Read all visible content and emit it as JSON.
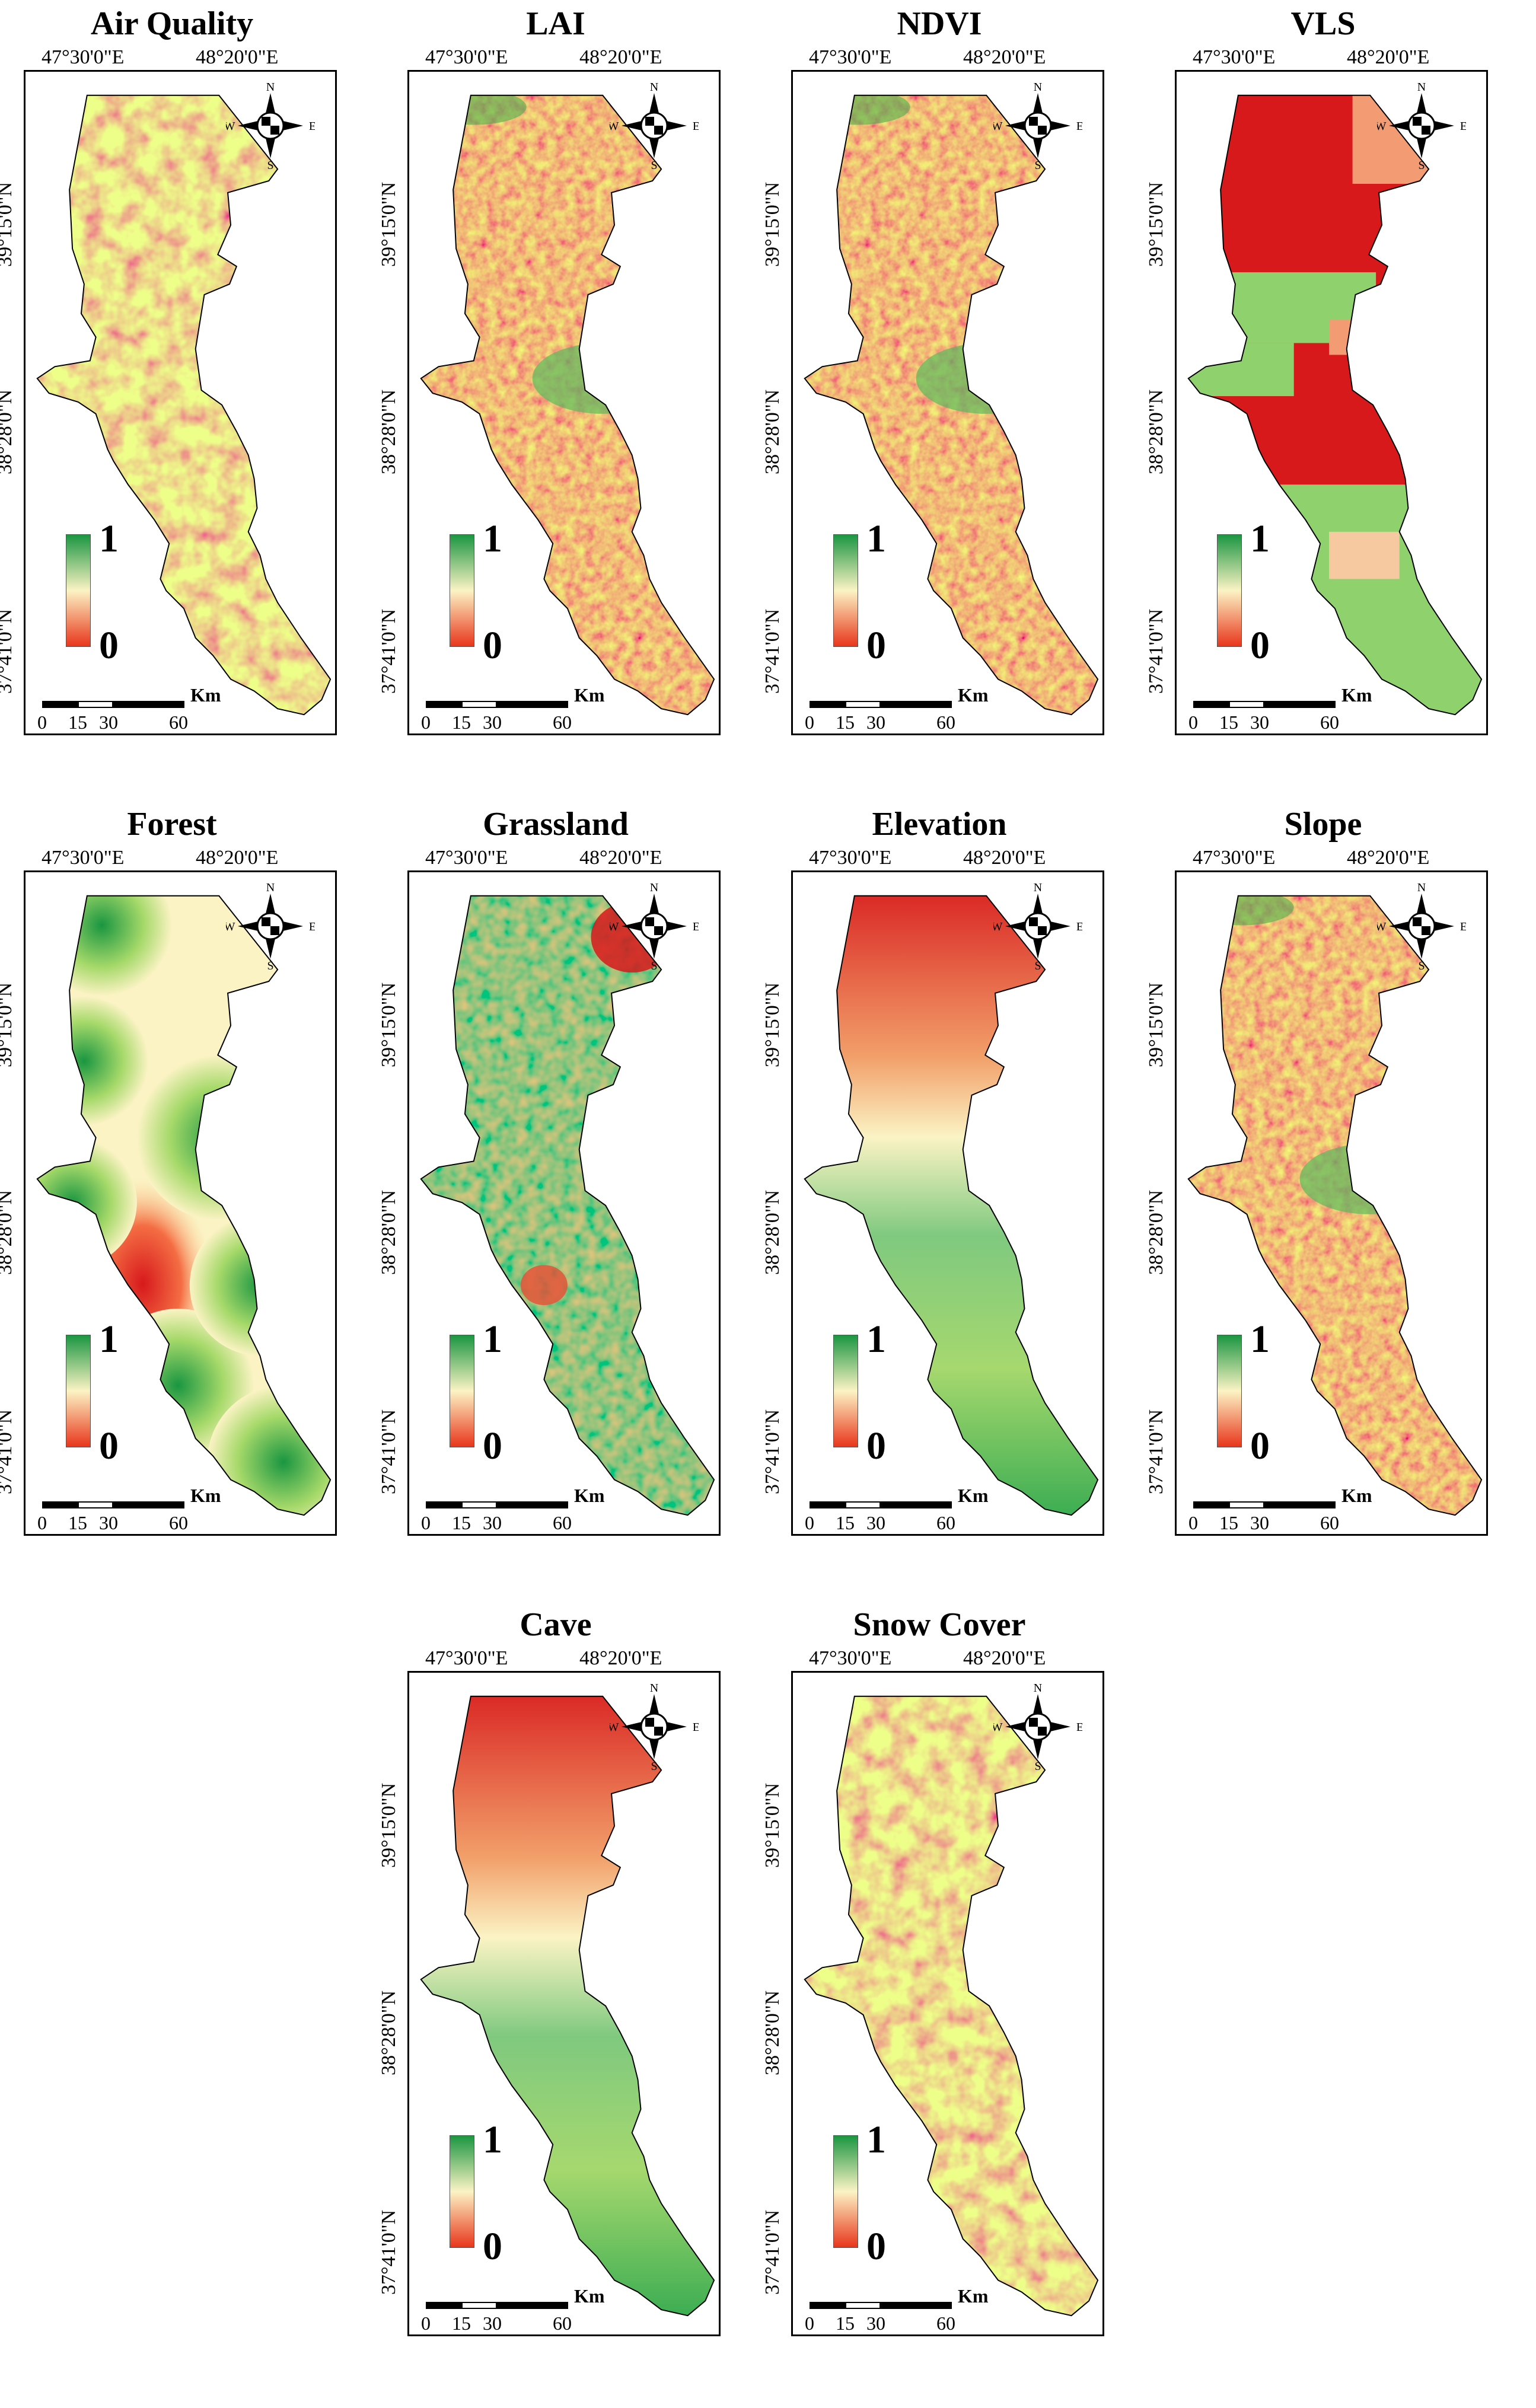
{
  "lon_labels": [
    "47°30'0\"E",
    "48°20'0\"E"
  ],
  "lat_labels": [
    "39°15'0\"N",
    "38°28'0\"N",
    "37°41'0\"N"
  ],
  "compass": {
    "n": "N",
    "s": "S",
    "e": "E",
    "w": "W"
  },
  "legend": {
    "max": "1",
    "min": "0"
  },
  "scale": {
    "unit": "Km",
    "ticks": [
      "0",
      "15",
      "30",
      "60"
    ]
  },
  "colors": {
    "low": "#d7191c",
    "mid": "#ffffbf",
    "high": "#1a9641"
  },
  "panels": [
    {
      "title": "Air Quality",
      "pattern": "noise"
    },
    {
      "title": "LAI",
      "pattern": "mostly-low"
    },
    {
      "title": "NDVI",
      "pattern": "mostly-low"
    },
    {
      "title": "VLS",
      "pattern": "classes"
    },
    {
      "title": "Forest",
      "pattern": "radial-green"
    },
    {
      "title": "Grassland",
      "pattern": "mostly-high"
    },
    {
      "title": "Elevation",
      "pattern": "north-low"
    },
    {
      "title": "Slope",
      "pattern": "mostly-low"
    },
    {
      "title": "Cave",
      "pattern": "north-low"
    },
    {
      "title": "Snow Cover",
      "pattern": "noise"
    }
  ]
}
